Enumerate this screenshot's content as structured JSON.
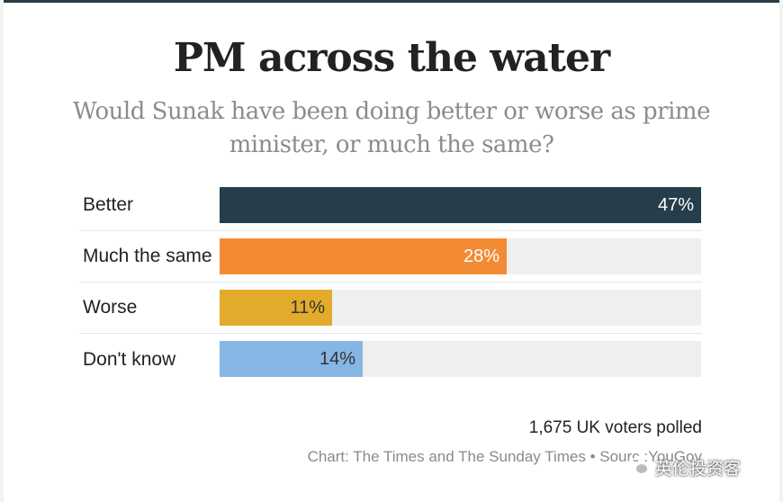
{
  "chart_data": {
    "type": "bar",
    "orientation": "horizontal",
    "title": "PM across the water",
    "subtitle": "Would Sunak have been doing better or worse as prime minister, or much the same?",
    "categories": [
      "Better",
      "Much the same",
      "Worse",
      "Don't know"
    ],
    "values": [
      47,
      28,
      11,
      14
    ],
    "value_labels": [
      "47%",
      "28%",
      "11%",
      "14%"
    ],
    "colors": [
      "#263d4b",
      "#f38b34",
      "#e3ab2b",
      "#86b6e4"
    ],
    "label_colors": [
      "#ffffff",
      "#ffffff",
      "#333333",
      "#333333"
    ],
    "xlim": [
      0,
      47
    ],
    "note": "1,675 UK voters polled",
    "source": "Chart: The Times and The Sunday Times • Sourc  :YouGov"
  },
  "watermark": {
    "text": "英伦投资客",
    "icon": "wechat-icon"
  }
}
